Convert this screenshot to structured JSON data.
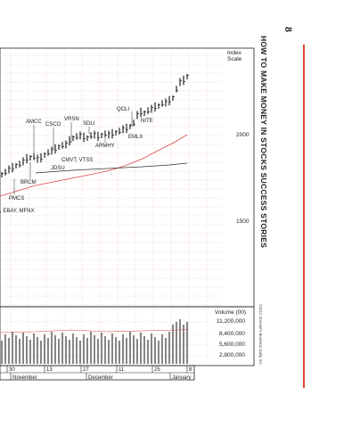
{
  "page": {
    "page_number": "8",
    "running_header": "HOW TO MAKE MONEY IN STOCKS SUCCESS STORIES",
    "copyright": "©2012 Investor's Business Daily, Inc."
  },
  "chart": {
    "index_scale_label": [
      "Index",
      "Scale"
    ],
    "price_scale": [
      "2000",
      "1500"
    ],
    "volume_title": "Volume (00)",
    "volume_scale": [
      "11,200,000",
      "8,400,000",
      "5,600,000",
      "2,800,000"
    ],
    "day_labels": [
      "30",
      "13",
      "27",
      "11",
      "25",
      "8"
    ],
    "month_labels": [
      "November",
      "December",
      "January"
    ],
    "annotations": [
      {
        "text": "AMCC"
      },
      {
        "text": "CSCO"
      },
      {
        "text": "VRSN"
      },
      {
        "text": "SDLI"
      },
      {
        "text": "QCLI"
      },
      {
        "text": "NITE"
      },
      {
        "text": "EMLX"
      },
      {
        "text": "ARMHY"
      },
      {
        "text": "CMVT, VTSS"
      },
      {
        "text": "JDSU"
      },
      {
        "text": "BRCM"
      },
      {
        "text": "PMCS"
      },
      {
        "text": ", EBAY, MFNX"
      }
    ]
  },
  "colors": {
    "ma_red": "#d8494b",
    "ma_dark": "#333333",
    "grid_red": "#e06a6a",
    "side_rule": "#e0453d"
  }
}
